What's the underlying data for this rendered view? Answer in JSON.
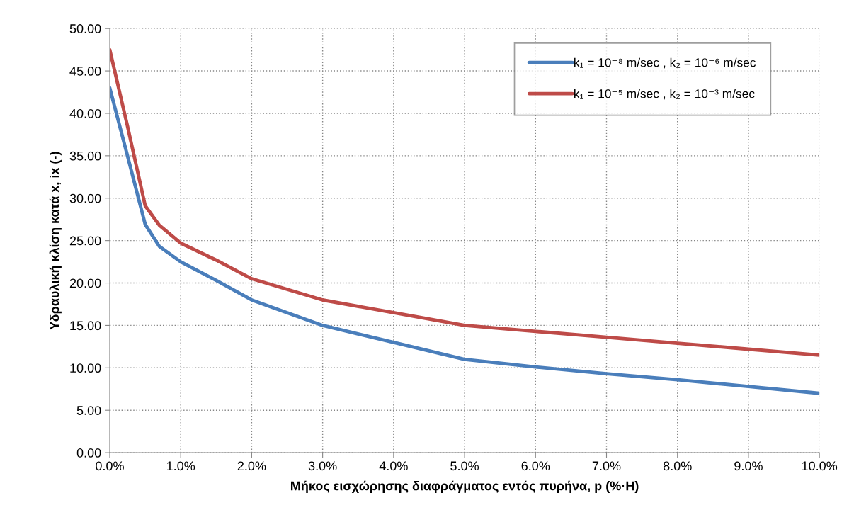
{
  "chart_data": {
    "type": "line",
    "xlabel": "Μήκος εισχώρησης διαφράγματος εντός πυρήνα, p (%·H)",
    "ylabel": "Υδραυλική κλίση κατά x, ix (-)",
    "x": [
      0,
      0.25,
      0.5,
      0.7,
      1,
      1.5,
      2,
      3,
      4,
      5,
      6,
      7,
      8,
      9,
      10
    ],
    "series": [
      {
        "name": "k₁ = 10⁻⁸ m/sec , k₂ = 10⁻⁶ m/sec",
        "color": "#4a7ebb",
        "values": [
          43.0,
          35.0,
          26.9,
          24.3,
          22.5,
          20.3,
          18.0,
          15.0,
          13.0,
          11.0,
          10.1,
          9.3,
          8.6,
          7.8,
          7.0
        ]
      },
      {
        "name": "k₁ = 10⁻⁵ m/sec , k₂ = 10⁻³ m/sec",
        "color": "#be4b48",
        "values": [
          47.5,
          38.5,
          29.1,
          26.8,
          24.7,
          22.7,
          20.5,
          18.0,
          16.5,
          15.0,
          14.3,
          13.6,
          12.9,
          12.2,
          11.5
        ]
      }
    ],
    "xlim": [
      0,
      10
    ],
    "xticks": [
      {
        "value": 0,
        "label": "0.0%"
      },
      {
        "value": 1,
        "label": "1.0%"
      },
      {
        "value": 2,
        "label": "2.0%"
      },
      {
        "value": 3,
        "label": "3.0%"
      },
      {
        "value": 4,
        "label": "4.0%"
      },
      {
        "value": 5,
        "label": "5.0%"
      },
      {
        "value": 6,
        "label": "6.0%"
      },
      {
        "value": 7,
        "label": "7.0%"
      },
      {
        "value": 8,
        "label": "8.0%"
      },
      {
        "value": 9,
        "label": "9.0%"
      },
      {
        "value": 10,
        "label": "10.0%"
      }
    ],
    "ylim": [
      0,
      50
    ],
    "yticks": [
      {
        "value": 0,
        "label": "0.00"
      },
      {
        "value": 5,
        "label": "5.00"
      },
      {
        "value": 10,
        "label": "10.00"
      },
      {
        "value": 15,
        "label": "15.00"
      },
      {
        "value": 20,
        "label": "20.00"
      },
      {
        "value": 25,
        "label": "25.00"
      },
      {
        "value": 30,
        "label": "30.00"
      },
      {
        "value": 35,
        "label": "35.00"
      },
      {
        "value": 40,
        "label": "40.00"
      },
      {
        "value": 45,
        "label": "45.00"
      },
      {
        "value": 50,
        "label": "50.00"
      }
    ],
    "grid": true,
    "legend": "top right",
    "marker": "none",
    "line_style": "solid"
  }
}
